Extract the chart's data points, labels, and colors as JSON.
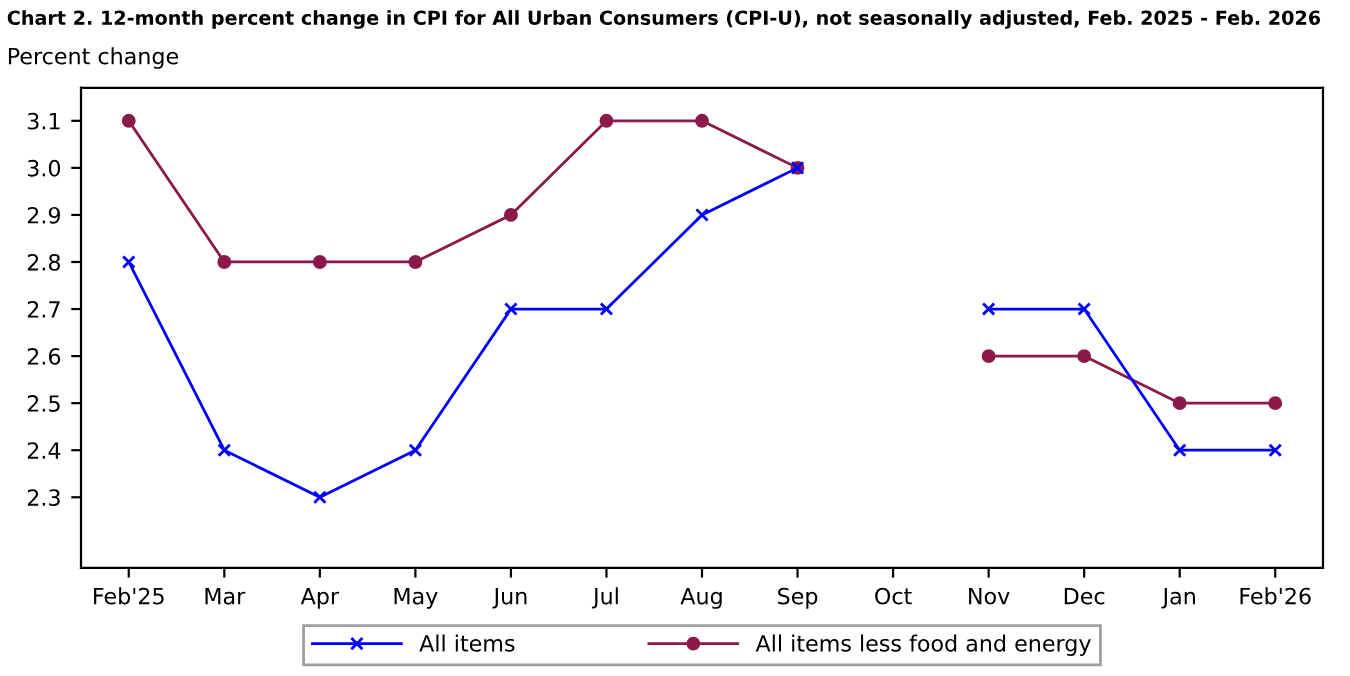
{
  "chart_data": {
    "type": "line",
    "title": "Chart 2. 12-month percent change in CPI for All Urban Consumers (CPI-U), not seasonally adjusted, Feb. 2025 - Feb. 2026",
    "ylabel": "Percent change",
    "categories": [
      "Feb'25",
      "Mar",
      "Apr",
      "May",
      "Jun",
      "Jul",
      "Aug",
      "Sep",
      "Oct",
      "Nov",
      "Dec",
      "Jan",
      "Feb'26"
    ],
    "series": [
      {
        "name": "All items",
        "color": "#0000ff",
        "marker": "cross",
        "values": [
          2.8,
          2.4,
          2.3,
          2.4,
          2.7,
          2.7,
          2.9,
          3.0,
          null,
          2.7,
          2.7,
          2.4,
          2.4
        ]
      },
      {
        "name": "All items less food and energy",
        "color": "#8b1a4a",
        "marker": "circle",
        "values": [
          3.1,
          2.8,
          2.8,
          2.8,
          2.9,
          3.1,
          3.1,
          3.0,
          null,
          2.6,
          2.6,
          2.5,
          2.5
        ]
      }
    ],
    "ylim": [
      2.15,
      3.17
    ],
    "yticks": [
      2.3,
      2.4,
      2.5,
      2.6,
      2.7,
      2.8,
      2.9,
      {
        "value": 3.0,
        "label": "3.0"
      },
      3.1
    ],
    "grid": false,
    "legend": "bottom",
    "line_style": "solid"
  }
}
